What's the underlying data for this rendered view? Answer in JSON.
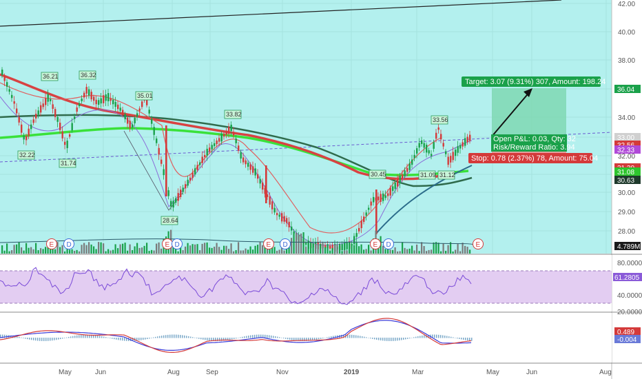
{
  "colors": {
    "chart_bg": "#b3f0ee",
    "up": "#1aa14a",
    "down": "#d43a3a",
    "rsi_band": "#e3cdf2",
    "target_zone": "#7fd8b3",
    "stop_zone": "#f08a8a",
    "ma_fast": "#d84242",
    "ma_green": "#3ae13a",
    "ma_dark": "#2f6b4c"
  },
  "price_axis": {
    "ticks": [
      "42.00",
      "40.00",
      "38.00",
      "36.00",
      "34.00",
      "33.00",
      "32.00",
      "31.00",
      "30.00",
      "29.00",
      "28.00"
    ],
    "tags": [
      {
        "text": "36.04",
        "color": "#1aa14a"
      },
      {
        "text": "33.00",
        "color": "#d0d0d0"
      },
      {
        "text": "32.56",
        "color": "#d43a3a"
      },
      {
        "text": "32.33",
        "color": "#b04ad8"
      },
      {
        "text": "31.30",
        "color": "#d43a3a"
      },
      {
        "text": "31.08",
        "color": "#2ec52e"
      },
      {
        "text": "30.63",
        "color": "#1f3a2c"
      },
      {
        "text": "4.789M",
        "color": "#1a1a1a"
      }
    ]
  },
  "rsi_axis": {
    "ticks": [
      "80.0000",
      "40.0000",
      "20.0000"
    ],
    "tag": "61.2805"
  },
  "macd_axis": {
    "tags": [
      {
        "text": "0.489",
        "color": "#d43a3a"
      },
      {
        "text": "-0.004",
        "color": "#6a7ad8"
      }
    ]
  },
  "time_axis": [
    "May",
    "Jun",
    "Aug",
    "Sep",
    "Nov",
    "2019",
    "Mar",
    "May",
    "Jun",
    "Aug"
  ],
  "pivot_labels": [
    "36.21",
    "36.32",
    "35.01",
    "33.82",
    "33.56",
    "32.22",
    "31.74",
    "28.64",
    "30.45",
    "31.09",
    "31.12"
  ],
  "trade": {
    "target": "Target: 3.07 (9.31%) 307, Amount: 198.24",
    "open_pl": "Open P&L: 0.03, Qty: 32",
    "risk_reward": "Risk/Reward Ratio: 3.94",
    "stop": "Stop: 0.78 (2.37%) 78, Amount: 75.04"
  },
  "events": [
    "E",
    "D",
    "E",
    "D",
    "E",
    "D",
    "E",
    "D",
    "E"
  ]
}
